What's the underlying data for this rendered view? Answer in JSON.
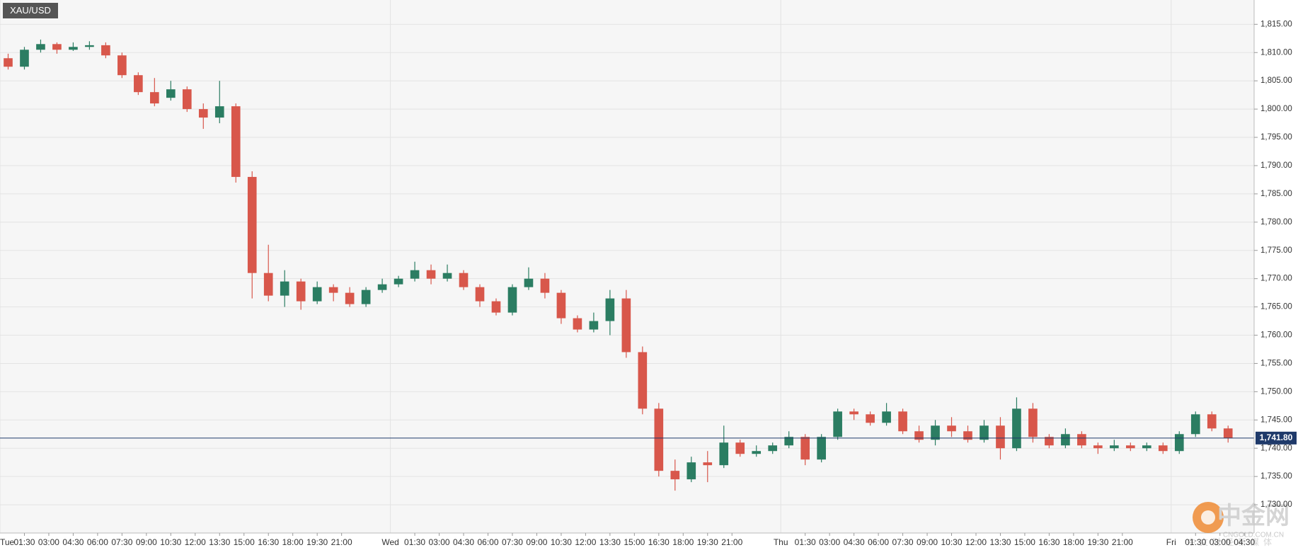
{
  "chart_data": {
    "type": "candlestick",
    "title": "XAU/USD",
    "xlim": [
      0,
      77.1
    ],
    "ylim": [
      1725,
      1819.3
    ],
    "yticks": [
      {
        "value": 1730,
        "label": "1,730.00"
      },
      {
        "value": 1735,
        "label": "1,735.00"
      },
      {
        "value": 1740,
        "label": "1,740.00"
      },
      {
        "value": 1745,
        "label": "1,745.00"
      },
      {
        "value": 1750,
        "label": "1,750.00"
      },
      {
        "value": 1755,
        "label": "1,755.00"
      },
      {
        "value": 1760,
        "label": "1,760.00"
      },
      {
        "value": 1765,
        "label": "1,765.00"
      },
      {
        "value": 1770,
        "label": "1,770.00"
      },
      {
        "value": 1775,
        "label": "1,775.00"
      },
      {
        "value": 1780,
        "label": "1,780.00"
      },
      {
        "value": 1785,
        "label": "1,785.00"
      },
      {
        "value": 1790,
        "label": "1,790.00"
      },
      {
        "value": 1795,
        "label": "1,795.00"
      },
      {
        "value": 1800,
        "label": "1,800.00"
      },
      {
        "value": 1805,
        "label": "1,805.00"
      },
      {
        "value": 1810,
        "label": "1,810.00"
      },
      {
        "value": 1815,
        "label": "1,815.00"
      }
    ],
    "day_ticks": [
      {
        "value": 0,
        "label": "Tue"
      },
      {
        "value": 24,
        "label": "Wed"
      },
      {
        "value": 48,
        "label": "Thu"
      },
      {
        "value": 72,
        "label": "Fri"
      }
    ],
    "xticks": [
      {
        "value": 1.5,
        "label": "01:30"
      },
      {
        "value": 3,
        "label": "03:00"
      },
      {
        "value": 4.5,
        "label": "04:30"
      },
      {
        "value": 6,
        "label": "06:00"
      },
      {
        "value": 7.5,
        "label": "07:30"
      },
      {
        "value": 9,
        "label": "09:00"
      },
      {
        "value": 10.5,
        "label": "10:30"
      },
      {
        "value": 12,
        "label": "12:00"
      },
      {
        "value": 13.5,
        "label": "13:30"
      },
      {
        "value": 15,
        "label": "15:00"
      },
      {
        "value": 16.5,
        "label": "16:30"
      },
      {
        "value": 18,
        "label": "18:00"
      },
      {
        "value": 19.5,
        "label": "19:30"
      },
      {
        "value": 21,
        "label": "21:00"
      },
      {
        "value": 25.5,
        "label": "01:30"
      },
      {
        "value": 27,
        "label": "03:00"
      },
      {
        "value": 28.5,
        "label": "04:30"
      },
      {
        "value": 30,
        "label": "06:00"
      },
      {
        "value": 31.5,
        "label": "07:30"
      },
      {
        "value": 33,
        "label": "09:00"
      },
      {
        "value": 34.5,
        "label": "10:30"
      },
      {
        "value": 36,
        "label": "12:00"
      },
      {
        "value": 37.5,
        "label": "13:30"
      },
      {
        "value": 39,
        "label": "15:00"
      },
      {
        "value": 40.5,
        "label": "16:30"
      },
      {
        "value": 42,
        "label": "18:00"
      },
      {
        "value": 43.5,
        "label": "19:30"
      },
      {
        "value": 45,
        "label": "21:00"
      },
      {
        "value": 49.5,
        "label": "01:30"
      },
      {
        "value": 51,
        "label": "03:00"
      },
      {
        "value": 52.5,
        "label": "04:30"
      },
      {
        "value": 54,
        "label": "06:00"
      },
      {
        "value": 55.5,
        "label": "07:30"
      },
      {
        "value": 57,
        "label": "09:00"
      },
      {
        "value": 58.5,
        "label": "10:30"
      },
      {
        "value": 60,
        "label": "12:00"
      },
      {
        "value": 61.5,
        "label": "13:30"
      },
      {
        "value": 63,
        "label": "15:00"
      },
      {
        "value": 64.5,
        "label": "16:30"
      },
      {
        "value": 66,
        "label": "18:00"
      },
      {
        "value": 67.5,
        "label": "19:30"
      },
      {
        "value": 69,
        "label": "21:00"
      },
      {
        "value": 73.5,
        "label": "01:30"
      },
      {
        "value": 75,
        "label": "03:00"
      },
      {
        "value": 76.5,
        "label": "04:30"
      }
    ],
    "up_color": "#2b7d62",
    "down_color": "#d8574b",
    "last_price": {
      "value": 1741.8,
      "label": "1,741.80",
      "color": "#1f3a6a"
    },
    "x": [
      0.5,
      1.5,
      2.5,
      3.5,
      4.5,
      5.5,
      6.5,
      7.5,
      8.5,
      9.5,
      10.5,
      11.5,
      12.5,
      13.5,
      14.5,
      15.5,
      16.5,
      17.5,
      18.5,
      19.5,
      20.5,
      21.5,
      22.5,
      23.5,
      24.5,
      25.5,
      26.5,
      27.5,
      28.5,
      29.5,
      30.5,
      31.5,
      32.5,
      33.5,
      34.5,
      35.5,
      36.5,
      37.5,
      38.5,
      39.5,
      40.5,
      41.5,
      42.5,
      43.5,
      44.5,
      45.5,
      46.5,
      47.5,
      48.5,
      49.5,
      50.5,
      51.5,
      52.5,
      53.5,
      54.5,
      55.5,
      56.5,
      57.5,
      58.5,
      59.5,
      60.5,
      61.5,
      62.5,
      63.5,
      64.5,
      65.5,
      66.5,
      67.5,
      68.5,
      69.5,
      70.5,
      71.5,
      72.5,
      73.5,
      74.5,
      75.5
    ],
    "open": [
      1809,
      1807.5,
      1810.5,
      1811.5,
      1810.5,
      1811,
      1811.3,
      1809.5,
      1806,
      1803,
      1802,
      1803.5,
      1800,
      1798.5,
      1800.5,
      1788,
      1771,
      1767,
      1769.5,
      1766,
      1768.5,
      1767.5,
      1765.5,
      1768,
      1769,
      1770,
      1771.5,
      1770,
      1771,
      1768.5,
      1766,
      1764,
      1768.5,
      1770,
      1767.5,
      1763,
      1761,
      1762.5,
      1766.5,
      1757,
      1747,
      1736,
      1734.5,
      1737.5,
      1737,
      1741,
      1739,
      1739.5,
      1740.5,
      1742,
      1738,
      1742,
      1746.5,
      1746,
      1744.5,
      1746.5,
      1743,
      1741.5,
      1744,
      1743,
      1741.5,
      1744,
      1740,
      1747,
      1742,
      1740.5,
      1742.5,
      1740.5,
      1740,
      1740.5,
      1740,
      1740.5,
      1739.5,
      1742.5,
      1746,
      1743.5
    ],
    "high": [
      1809.8,
      1811,
      1812.3,
      1811.8,
      1811.8,
      1812,
      1811.8,
      1810,
      1806.5,
      1805.5,
      1805,
      1804,
      1801,
      1805,
      1801,
      1789,
      1776,
      1771.5,
      1770,
      1769.5,
      1769,
      1768.5,
      1768.5,
      1770,
      1770.5,
      1773,
      1772.5,
      1772.5,
      1771.5,
      1769,
      1766.5,
      1769,
      1772,
      1771,
      1768,
      1763.5,
      1764,
      1768,
      1768,
      1758,
      1748,
      1738,
      1738.5,
      1739.5,
      1744,
      1741.5,
      1740.5,
      1741,
      1743,
      1742.5,
      1742.5,
      1747,
      1747,
      1746.5,
      1748,
      1747,
      1744,
      1745,
      1745.5,
      1744,
      1745,
      1745.5,
      1749,
      1748,
      1742.5,
      1743.5,
      1743,
      1741,
      1741.5,
      1741,
      1741,
      1741,
      1743,
      1746.5,
      1746.5,
      1744
    ],
    "low": [
      1807,
      1807,
      1810,
      1809.8,
      1810.3,
      1810.5,
      1809,
      1805.5,
      1802.5,
      1800.5,
      1801.5,
      1799.5,
      1796.5,
      1797.5,
      1787,
      1766.5,
      1766,
      1765,
      1764.5,
      1765.5,
      1766,
      1765,
      1765,
      1767.5,
      1768.5,
      1769.5,
      1769,
      1769.5,
      1768,
      1765,
      1763.5,
      1763.5,
      1768,
      1766.5,
      1762,
      1760.5,
      1760.5,
      1760,
      1756,
      1746,
      1735,
      1732.5,
      1734,
      1734,
      1736.5,
      1738.5,
      1738.5,
      1739,
      1740,
      1737,
      1737.5,
      1741.5,
      1745,
      1744,
      1744,
      1742.5,
      1741,
      1740.5,
      1742,
      1741,
      1741,
      1738,
      1739.5,
      1741,
      1740,
      1740,
      1740,
      1739,
      1739.5,
      1739.5,
      1739.5,
      1739,
      1739,
      1742,
      1743,
      1741
    ],
    "close": [
      1807.5,
      1810.5,
      1811.5,
      1810.5,
      1811,
      1811.3,
      1809.5,
      1806,
      1803,
      1801,
      1803.5,
      1800,
      1798.5,
      1800.5,
      1788,
      1771,
      1767,
      1769.5,
      1766,
      1768.5,
      1767.5,
      1765.5,
      1768,
      1769,
      1770,
      1771.5,
      1770,
      1771,
      1768.5,
      1766,
      1764,
      1768.5,
      1770,
      1767.5,
      1763,
      1761,
      1762.5,
      1766.5,
      1757,
      1747,
      1736,
      1734.5,
      1737.5,
      1737,
      1741,
      1739,
      1739.5,
      1740.5,
      1742,
      1738,
      1742,
      1746.5,
      1746,
      1744.5,
      1746.5,
      1743,
      1741.5,
      1744,
      1743,
      1741.5,
      1744,
      1740,
      1747,
      1742,
      1740.5,
      1742.5,
      1740.5,
      1740,
      1740.5,
      1740,
      1740.5,
      1739.5,
      1742.5,
      1746,
      1743.5,
      1741.8
    ]
  },
  "watermark": {
    "brand": "中金网",
    "domain": "CNGOLD.COM.CN",
    "slogan": "中文财经新媒体"
  }
}
